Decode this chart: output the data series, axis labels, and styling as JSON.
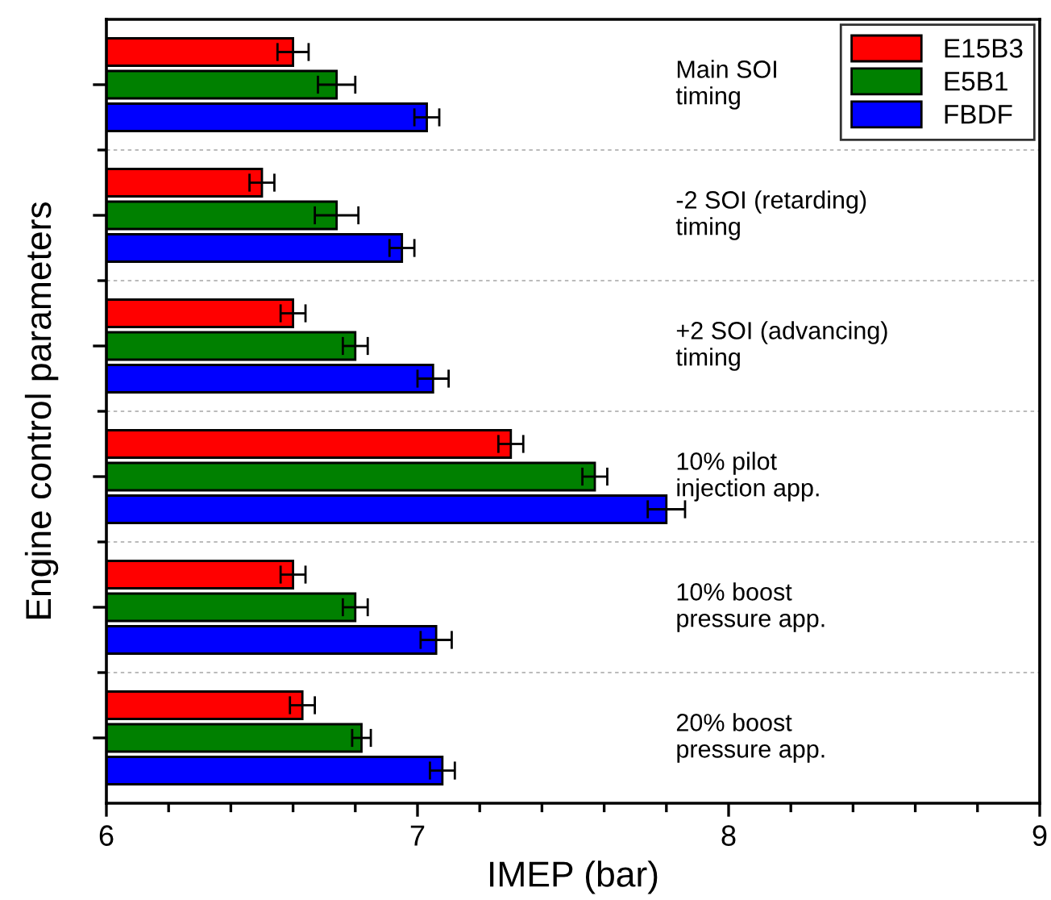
{
  "chart_data": {
    "type": "bar",
    "orientation": "horizontal",
    "xlabel": "IMEP (bar)",
    "ylabel": "Engine control parameters",
    "categories": [
      "Main SOI\ntiming",
      "-2 SOI (retarding)\ntiming",
      "+2 SOI (advancing)\ntiming",
      "10% pilot\ninjection app.",
      "10% boost\npressure app.",
      "20% boost\npressure app."
    ],
    "series": [
      {
        "name": "E15B3",
        "color": "#ff0000",
        "values": [
          6.6,
          6.5,
          6.6,
          7.3,
          6.6,
          6.63
        ],
        "errors": [
          0.05,
          0.04,
          0.04,
          0.04,
          0.04,
          0.04
        ]
      },
      {
        "name": "E5B1",
        "color": "#008000",
        "values": [
          6.74,
          6.74,
          6.8,
          7.57,
          6.8,
          6.82
        ],
        "errors": [
          0.06,
          0.07,
          0.04,
          0.04,
          0.04,
          0.03
        ]
      },
      {
        "name": "FBDF",
        "color": "#0000ff",
        "values": [
          7.03,
          6.95,
          7.05,
          7.8,
          7.06,
          7.08
        ],
        "errors": [
          0.04,
          0.04,
          0.05,
          0.06,
          0.05,
          0.04
        ]
      }
    ],
    "xlim": [
      6,
      9
    ],
    "xticks": [
      6,
      7,
      8,
      9
    ],
    "grid": "y",
    "legend": "top right",
    "tick_labels": "x"
  }
}
